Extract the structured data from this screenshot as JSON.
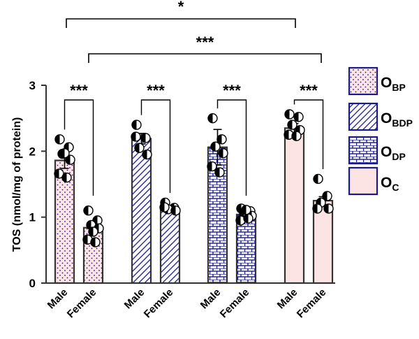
{
  "chart_data": {
    "type": "bar",
    "ylabel": "TOS (nmol/mg of protein)",
    "ylim": [
      0,
      3
    ],
    "yticks": [
      "0",
      "1",
      "2",
      "3"
    ],
    "xlabel": "",
    "groups": [
      {
        "key": "bp",
        "pattern": "dots",
        "fill": "#fde4e4",
        "legend": {
          "main": "O",
          "sub": "BP"
        },
        "bars": [
          {
            "label": "Male",
            "value": 1.86,
            "err": 0.12,
            "points": [
              2.18,
              2.06,
              1.96,
              1.87,
              1.66,
              1.6,
              1.97
            ]
          },
          {
            "label": "Female",
            "value": 0.84,
            "err": 0.07,
            "points": [
              1.1,
              0.95,
              0.88,
              0.83,
              0.66,
              0.62,
              0.78
            ]
          }
        ]
      },
      {
        "key": "bdp",
        "pattern": "hatch",
        "fill": "#ffffff",
        "legend": {
          "main": "O",
          "sub": "BDP"
        },
        "bars": [
          {
            "label": "Male",
            "value": 2.19,
            "err": 0.08,
            "points": [
              2.4,
              2.2,
              2.05,
              1.95,
              2.22
            ]
          },
          {
            "label": "Female",
            "value": 1.13,
            "err": 0.03,
            "points": [
              1.22,
              1.14,
              1.12,
              1.1,
              1.15
            ]
          }
        ]
      },
      {
        "key": "dp",
        "pattern": "brick",
        "fill": "#ffffff",
        "legend": {
          "main": "O",
          "sub": "DP"
        },
        "bars": [
          {
            "label": "Male",
            "value": 2.06,
            "err": 0.27,
            "points": [
              2.5,
              2.18,
              2.07,
              1.97,
              1.77,
              1.68
            ]
          },
          {
            "label": "Female",
            "value": 1.04,
            "err": 0.06,
            "points": [
              1.13,
              1.09,
              1.05,
              1.02,
              0.95,
              0.98,
              1.11
            ]
          }
        ]
      },
      {
        "key": "c",
        "pattern": "solid",
        "fill": "#fde4e4",
        "legend": {
          "main": "O",
          "sub": "C"
        },
        "bars": [
          {
            "label": "Male",
            "value": 2.35,
            "err": 0.07,
            "points": [
              2.56,
              2.52,
              2.4,
              2.32,
              2.25,
              2.23
            ]
          },
          {
            "label": "Female",
            "value": 1.25,
            "err": 0.06,
            "points": [
              1.58,
              1.32,
              1.22,
              1.13,
              1.13
            ]
          }
        ]
      }
    ],
    "pair_significance": [
      "***",
      "***",
      "***",
      "***"
    ],
    "comparisons": [
      {
        "from_group": 0,
        "to_group": 3,
        "bar": "Male",
        "label": "*"
      },
      {
        "from_group": 0,
        "to_group": 3,
        "bar": "Female",
        "label": "***"
      }
    ],
    "colors": {
      "stroke": "#333333",
      "accent": "#1a1a8c",
      "pink": "#fde4e4"
    }
  }
}
